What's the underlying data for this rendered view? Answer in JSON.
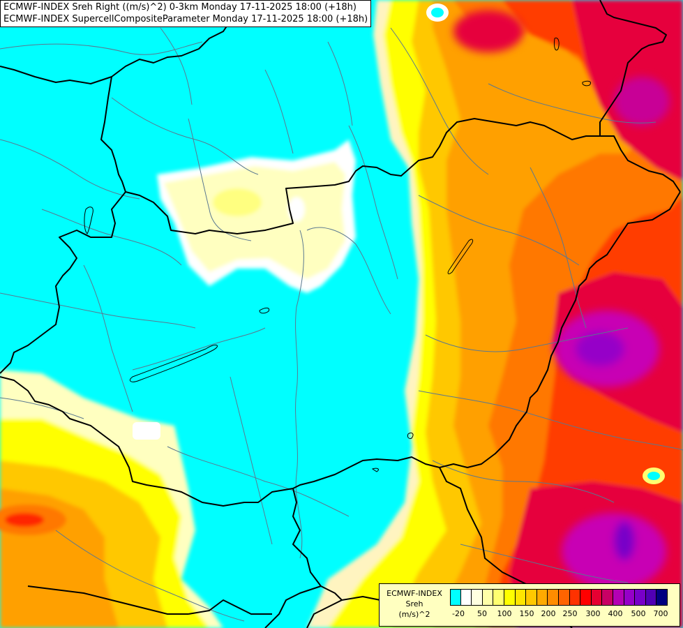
{
  "header": {
    "line1": "ECMWF-INDEX Sreh Right ((m/s)^2) 0-3km Monday 17-11-2025 18:00 (+18h)",
    "line2": "ECMWF-INDEX SupercellCompositeParameter Monday 17-11-2025 18:00 (+18h)"
  },
  "legend": {
    "title_line1": "ECMWF-INDEX",
    "title_line2": "Sreh",
    "title_line3": "(m/s)^2",
    "colors": [
      "#00ffff",
      "#ffffff",
      "#ffffe0",
      "#ffffa8",
      "#ffff70",
      "#ffff00",
      "#ffe600",
      "#ffc800",
      "#ffaa00",
      "#ff8c00",
      "#ff6400",
      "#ff3200",
      "#ff0000",
      "#e60032",
      "#c80064",
      "#b400b4",
      "#9600c8",
      "#7800c8",
      "#5000b4",
      "#000080"
    ],
    "ticks": [
      "-20",
      "50",
      "100",
      "150",
      "200",
      "250",
      "300",
      "400",
      "500",
      "700"
    ]
  },
  "colors": {
    "cyan": "#00ffff",
    "pale": "#ffffc0",
    "yellow": "#ffff00",
    "orange": "#ffa500",
    "red": "#ff2800",
    "magenta": "#c000c0",
    "border": "#000000",
    "river": "#5a7890"
  }
}
